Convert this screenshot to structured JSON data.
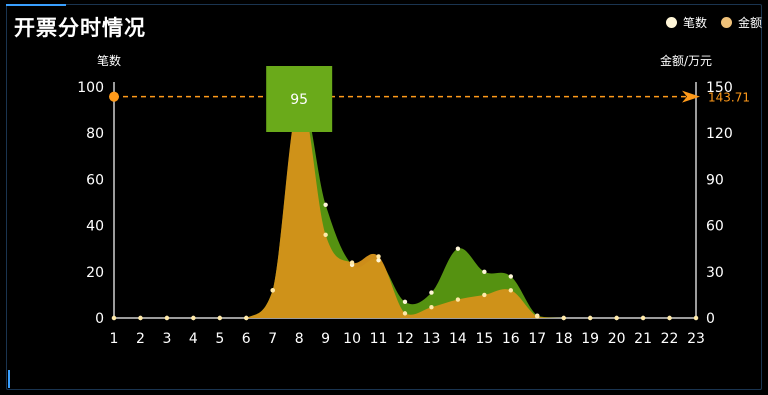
{
  "title": "开票分时情况",
  "legend": [
    {
      "label": "笔数",
      "color": "#fff6d8"
    },
    {
      "label": "金额",
      "color": "#f0c27a"
    }
  ],
  "chart_data": {
    "type": "area",
    "x": [
      1,
      2,
      3,
      4,
      5,
      6,
      7,
      8,
      9,
      10,
      11,
      12,
      13,
      14,
      15,
      16,
      17,
      18,
      19,
      20,
      21,
      22,
      23
    ],
    "ylabel_left": "笔数",
    "ylabel_right": "金额/万元",
    "ylim_left": [
      0,
      100
    ],
    "ylim_right": [
      0,
      150
    ],
    "yticks_left": [
      0,
      20,
      40,
      60,
      80,
      100
    ],
    "yticks_right": [
      0,
      30,
      60,
      90,
      120,
      150
    ],
    "series": [
      {
        "name": "笔数",
        "axis": "left",
        "color": "#5a9a12",
        "values": [
          0,
          0,
          0,
          0,
          0,
          0,
          12,
          95,
          49,
          23,
          25,
          7,
          11,
          30,
          20,
          18,
          1,
          0,
          0,
          0,
          0,
          0,
          0
        ]
      },
      {
        "name": "金额",
        "axis": "right",
        "color": "#d4921a",
        "values": [
          0,
          0,
          0,
          0,
          0,
          0,
          18,
          142,
          54,
          36,
          40,
          3,
          7,
          12,
          15,
          18,
          1,
          0,
          0,
          0,
          0,
          0,
          0
        ]
      }
    ],
    "markline": {
      "axis": "right",
      "value": 143.71,
      "label": "143.71",
      "color": "#ff9a1a"
    },
    "peak_label": {
      "x": 8,
      "value": "95",
      "color": "#6aaa1a"
    },
    "grid": false
  }
}
